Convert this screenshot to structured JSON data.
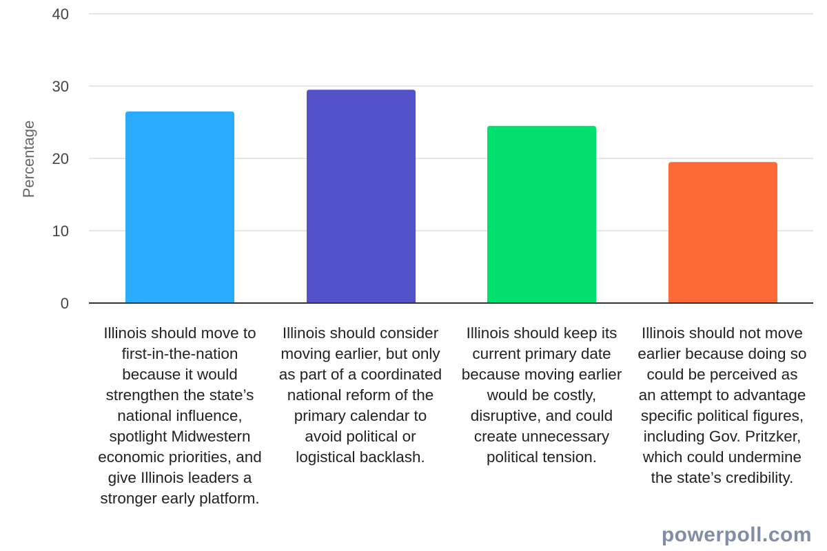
{
  "chart_data": {
    "type": "bar",
    "categories": [
      "Illinois should move to first-in-the-nation because it would strengthen the state’s national influence, spotlight Midwestern economic priorities, and give Illinois leaders a stronger early platform.",
      "Illinois should consider moving earlier, but only as part of a coordinated national reform of the primary calendar to avoid political or logistical backlash.",
      "Illinois should keep its current primary date because moving earlier would be costly, disruptive, and could create unnecessary political tension.",
      "Illinois should not move earlier because doing so could be perceived as an attempt to advantage specific political figures, including Gov. Pritzker, which could undermine the state’s credibility."
    ],
    "values": [
      26.5,
      29.5,
      24.5,
      19.5
    ],
    "colors": [
      "#2aabff",
      "#5452c8",
      "#02e06f",
      "#ff6a39"
    ],
    "ylabel": "Percentage",
    "ylim": [
      0,
      40
    ],
    "yticks": [
      "0",
      "10",
      "20",
      "30",
      "40"
    ],
    "grid": true
  },
  "watermark": "powerpoll.com"
}
